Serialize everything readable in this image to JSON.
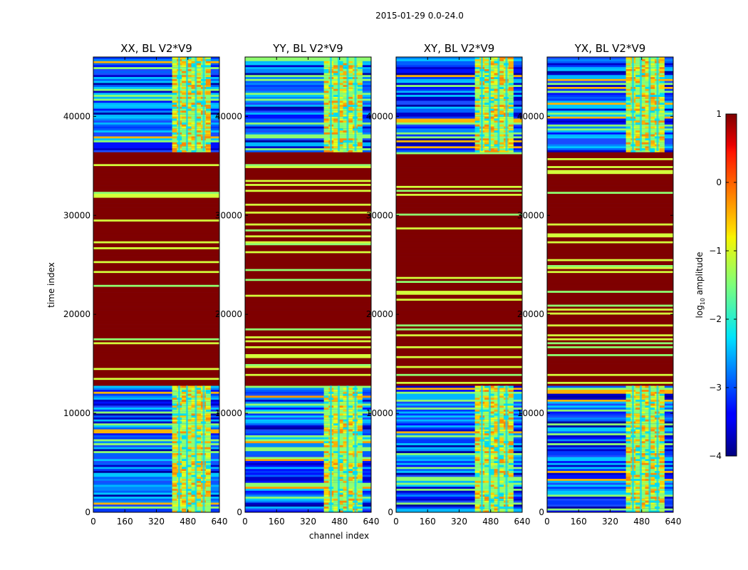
{
  "chart_data": {
    "type": "heatmap",
    "suptitle": "2015-01-29 0.0-24.0",
    "xlabel": "channel index",
    "ylabel": "time index",
    "xlim": [
      0,
      640
    ],
    "ylim": [
      0,
      46000
    ],
    "xticks": [
      0,
      160,
      320,
      480,
      640
    ],
    "yticks": [
      0,
      10000,
      20000,
      30000,
      40000
    ],
    "panels": [
      {
        "title": "XX, BL V2*V9"
      },
      {
        "title": "YY, BL V2*V9"
      },
      {
        "title": "XY, BL V2*V9"
      },
      {
        "title": "YX, BL V2*V9"
      }
    ],
    "colorbar": {
      "label": "log10 amplitude",
      "label_base": "log",
      "label_sub": "10",
      "label_rest": " amplitude",
      "ticks": [
        1,
        0,
        -1,
        -2,
        -3,
        -4
      ],
      "tick_labels": [
        "1",
        "0",
        "−1",
        "−2",
        "−3",
        "−4"
      ],
      "range": [
        -4,
        1
      ],
      "colormap": "jet"
    },
    "saturated_time_range": [
      12800,
      36500
    ],
    "bright_channel_range": [
      400,
      595
    ],
    "colors": {
      "saturated": "#7f0000",
      "yellow_band": "#d4ff3a",
      "green_band": "#8fff70"
    }
  }
}
